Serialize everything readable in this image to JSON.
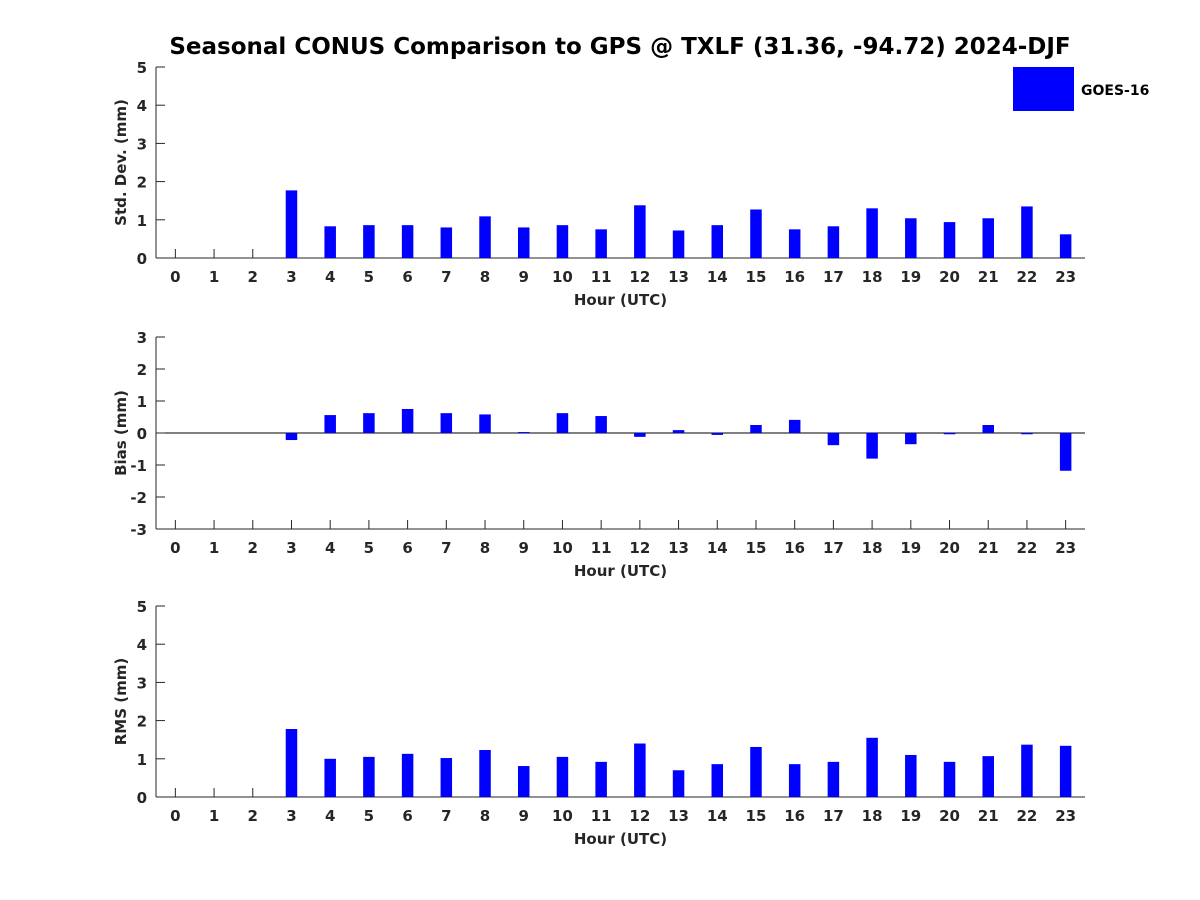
{
  "title": "Seasonal CONUS Comparison to GPS @ TXLF (31.36, -94.72) 2024-DJF",
  "legend": {
    "label": "GOES-16",
    "color": "#0000ff",
    "placement": "top-right"
  },
  "chart_data": [
    {
      "type": "bar",
      "xlabel": "Hour (UTC)",
      "ylabel": "Std. Dev. (mm)",
      "ylim": [
        0,
        5
      ],
      "yticks": [
        0,
        1,
        2,
        3,
        4,
        5
      ],
      "categories": [
        "0",
        "1",
        "2",
        "3",
        "4",
        "5",
        "6",
        "7",
        "8",
        "9",
        "10",
        "11",
        "12",
        "13",
        "14",
        "15",
        "16",
        "17",
        "18",
        "19",
        "20",
        "21",
        "22",
        "23"
      ],
      "series": [
        {
          "name": "GOES-16",
          "values": [
            null,
            null,
            null,
            1.77,
            0.83,
            0.86,
            0.86,
            0.8,
            1.09,
            0.8,
            0.86,
            0.75,
            1.38,
            0.72,
            0.86,
            1.27,
            0.75,
            0.83,
            1.3,
            1.04,
            0.94,
            1.04,
            1.35,
            0.62
          ]
        }
      ],
      "grid": false
    },
    {
      "type": "bar",
      "xlabel": "Hour (UTC)",
      "ylabel": "Bias (mm)",
      "ylim": [
        -3,
        3
      ],
      "yticks": [
        -3,
        -2,
        -1,
        0,
        1,
        2,
        3
      ],
      "categories": [
        "0",
        "1",
        "2",
        "3",
        "4",
        "5",
        "6",
        "7",
        "8",
        "9",
        "10",
        "11",
        "12",
        "13",
        "14",
        "15",
        "16",
        "17",
        "18",
        "19",
        "20",
        "21",
        "22",
        "23"
      ],
      "series": [
        {
          "name": "GOES-16",
          "values": [
            null,
            null,
            null,
            -0.22,
            0.56,
            0.62,
            0.75,
            0.62,
            0.58,
            0.03,
            0.62,
            0.53,
            -0.12,
            0.09,
            -0.06,
            0.25,
            0.41,
            -0.38,
            -0.8,
            -0.35,
            -0.04,
            0.25,
            -0.04,
            -1.18
          ]
        }
      ],
      "grid": false
    },
    {
      "type": "bar",
      "xlabel": "Hour (UTC)",
      "ylabel": "RMS (mm)",
      "ylim": [
        0,
        5
      ],
      "yticks": [
        0,
        1,
        2,
        3,
        4,
        5
      ],
      "categories": [
        "0",
        "1",
        "2",
        "3",
        "4",
        "5",
        "6",
        "7",
        "8",
        "9",
        "10",
        "11",
        "12",
        "13",
        "14",
        "15",
        "16",
        "17",
        "18",
        "19",
        "20",
        "21",
        "22",
        "23"
      ],
      "series": [
        {
          "name": "GOES-16",
          "values": [
            null,
            null,
            null,
            1.78,
            1.0,
            1.05,
            1.13,
            1.02,
            1.23,
            0.81,
            1.05,
            0.92,
            1.4,
            0.7,
            0.86,
            1.31,
            0.86,
            0.92,
            1.55,
            1.1,
            0.92,
            1.07,
            1.37,
            1.34
          ]
        }
      ],
      "grid": false
    }
  ]
}
